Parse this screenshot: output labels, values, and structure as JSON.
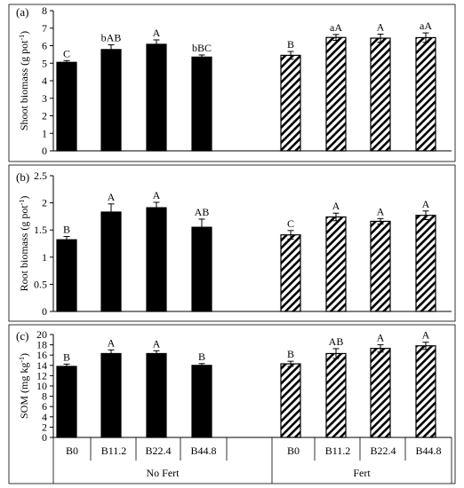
{
  "chart_data": [
    {
      "type": "bar",
      "panel_label": "(a)",
      "ylabel": "Shoot biomass (g pot",
      "ylabel_sup": "-1",
      "ylabel_tail": ")",
      "ylim": [
        0,
        8
      ],
      "yticks": [
        0,
        1,
        2,
        3,
        4,
        5,
        6,
        7,
        8
      ],
      "categories": [
        "B0",
        "B11.2",
        "B22.4",
        "B44.8"
      ],
      "groups": [
        "No Fert",
        "Fert"
      ],
      "series": [
        {
          "name": "No Fert",
          "fill": "solid",
          "values": [
            5.05,
            5.78,
            6.08,
            5.35
          ],
          "errors": [
            0.1,
            0.27,
            0.25,
            0.12
          ],
          "letters": [
            "C",
            "bAB",
            "A",
            "bBC"
          ]
        },
        {
          "name": "Fert",
          "fill": "hatch",
          "values": [
            5.45,
            6.47,
            6.43,
            6.46
          ],
          "errors": [
            0.22,
            0.17,
            0.23,
            0.27
          ],
          "letters": [
            "B",
            "aA",
            "A",
            "aA"
          ]
        }
      ]
    },
    {
      "type": "bar",
      "panel_label": "(b)",
      "ylabel": "Root biomass (g pot",
      "ylabel_sup": "-1",
      "ylabel_tail": ")",
      "ylim": [
        0,
        2.5
      ],
      "yticks": [
        0,
        0.5,
        1,
        1.5,
        2,
        2.5
      ],
      "categories": [
        "B0",
        "B11.2",
        "B22.4",
        "B44.8"
      ],
      "groups": [
        "No Fert",
        "Fert"
      ],
      "series": [
        {
          "name": "No Fert",
          "fill": "solid",
          "values": [
            1.32,
            1.83,
            1.91,
            1.55
          ],
          "errors": [
            0.06,
            0.15,
            0.1,
            0.15
          ],
          "letters": [
            "B",
            "A",
            "A",
            "AB"
          ]
        },
        {
          "name": "Fert",
          "fill": "hatch",
          "values": [
            1.41,
            1.74,
            1.66,
            1.77
          ],
          "errors": [
            0.08,
            0.07,
            0.05,
            0.08
          ],
          "letters": [
            "C",
            "A",
            "A",
            "A"
          ]
        }
      ]
    },
    {
      "type": "bar",
      "panel_label": "(c)",
      "ylabel": "SOM (mg kg",
      "ylabel_sup": "-1",
      "ylabel_tail": ")",
      "ylim": [
        0,
        20
      ],
      "yticks": [
        0,
        2,
        4,
        6,
        8,
        10,
        12,
        14,
        16,
        18,
        20
      ],
      "categories": [
        "B0",
        "B11.2",
        "B22.4",
        "B44.8"
      ],
      "groups": [
        "No Fert",
        "Fert"
      ],
      "series": [
        {
          "name": "No Fert",
          "fill": "solid",
          "values": [
            13.8,
            16.3,
            16.3,
            14.0
          ],
          "errors": [
            0.45,
            0.7,
            0.55,
            0.35
          ],
          "letters": [
            "B",
            "A",
            "A",
            "B"
          ]
        },
        {
          "name": "Fert",
          "fill": "hatch",
          "values": [
            14.3,
            16.3,
            17.3,
            17.8
          ],
          "errors": [
            0.5,
            0.95,
            0.7,
            0.7
          ],
          "letters": [
            "B",
            "AB",
            "A",
            "A"
          ]
        }
      ]
    }
  ]
}
